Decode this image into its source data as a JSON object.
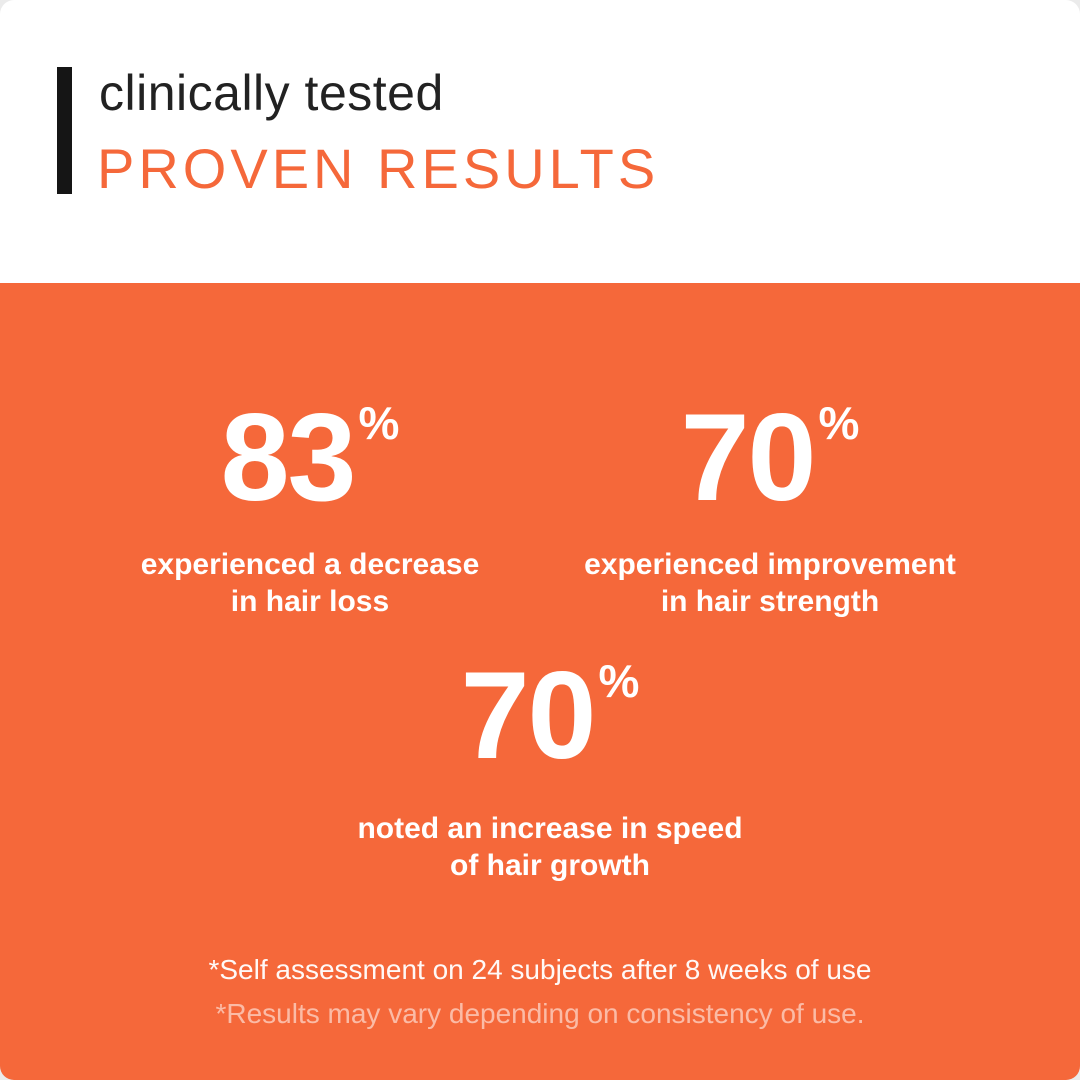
{
  "colors": {
    "accent_orange": "#f5683a",
    "accent_black": "#151515",
    "panel_white": "#ffffff",
    "text_white": "#ffffff"
  },
  "header": {
    "eyebrow": "clinically tested",
    "title": "PROVEN RESULTS"
  },
  "stats": [
    {
      "value": "83",
      "unit": "%",
      "label_line1": "experienced a decrease",
      "label_line2": "in hair loss"
    },
    {
      "value": "70",
      "unit": "%",
      "label_line1": "experienced improvement",
      "label_line2": "in hair strength"
    },
    {
      "value": "70",
      "unit": "%",
      "label_line1": "noted an increase in speed",
      "label_line2": "of hair growth"
    }
  ],
  "footnotes": {
    "line1": "*Self assessment on 24 subjects after 8 weeks of use",
    "line2": "*Results may vary depending on consistency of use."
  }
}
